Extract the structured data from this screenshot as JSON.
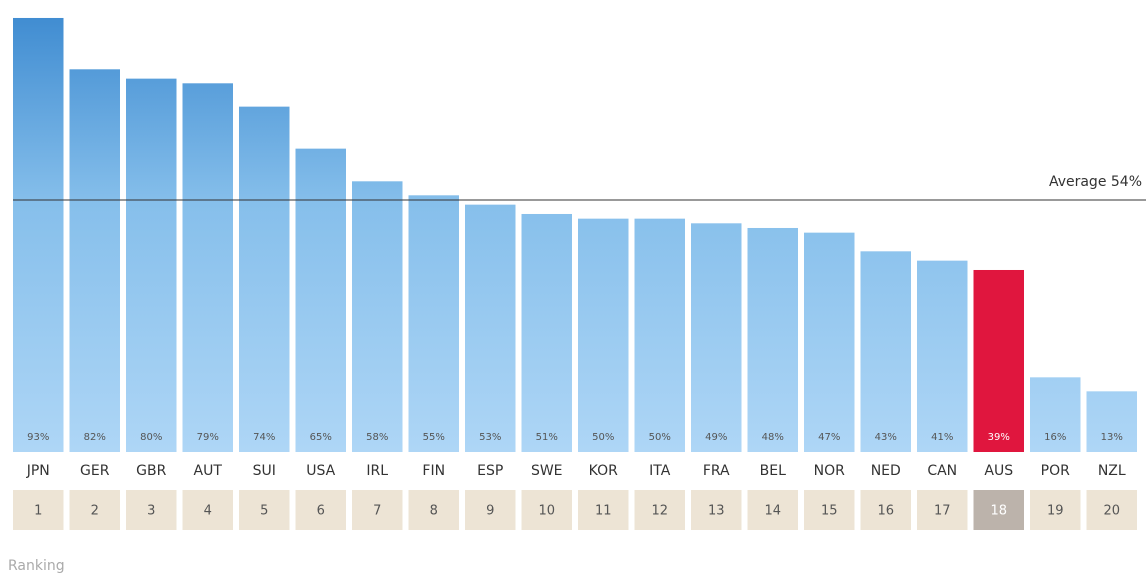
{
  "chart_data": {
    "type": "bar",
    "categories": [
      "JPN",
      "GER",
      "GBR",
      "AUT",
      "SUI",
      "USA",
      "IRL",
      "FIN",
      "ESP",
      "SWE",
      "KOR",
      "ITA",
      "FRA",
      "BEL",
      "NOR",
      "NED",
      "CAN",
      "AUS",
      "POR",
      "NZL"
    ],
    "values": [
      93,
      82,
      80,
      79,
      74,
      65,
      58,
      55,
      53,
      51,
      50,
      50,
      49,
      48,
      47,
      43,
      41,
      39,
      16,
      13
    ],
    "value_labels": [
      "93%",
      "82%",
      "80%",
      "79%",
      "74%",
      "65%",
      "58%",
      "55%",
      "53%",
      "51%",
      "50%",
      "50%",
      "49%",
      "48%",
      "47%",
      "43%",
      "41%",
      "39%",
      "16%",
      "13%"
    ],
    "colors": [
      "#5fa4dd",
      "#5fa4dd",
      "#5fa4dd",
      "#5fa4dd",
      "#5fa4dd",
      "#5fa4dd",
      "#5fa4dd",
      "#5fa4dd",
      "#5fa4dd",
      "#5fa4dd",
      "#5fa4dd",
      "#5fa4dd",
      "#5fa4dd",
      "#5fa4dd",
      "#5fa4dd",
      "#5fa4dd",
      "#5fa4dd",
      "#e0163e",
      "#5fa4dd",
      "#5fa4dd"
    ],
    "rankings": [
      1,
      2,
      3,
      4,
      5,
      6,
      7,
      8,
      9,
      10,
      11,
      12,
      13,
      14,
      15,
      16,
      17,
      18,
      19,
      20
    ],
    "average": {
      "value": 54,
      "label": "Average 54%"
    },
    "rankings_label": "Ranking"
  }
}
